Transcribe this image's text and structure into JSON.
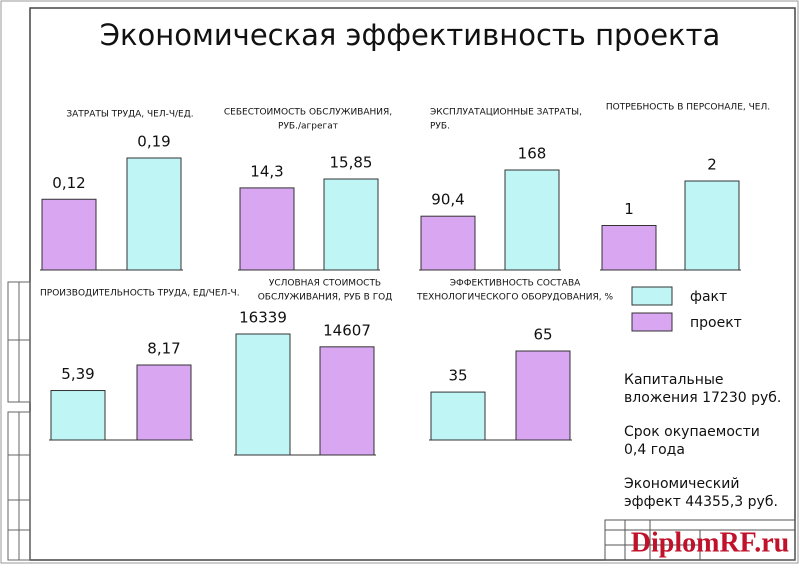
{
  "chart_data": [
    {
      "type": "bar",
      "title": [
        "ЗАТРАТЫ ТРУДА, ЧЕЛ-Ч/ЕД."
      ],
      "values": [
        0.12,
        0.19
      ],
      "value_labels": [
        "0,12",
        "0,19"
      ],
      "colors": [
        "#d9a6f2",
        "#bff5f5"
      ]
    },
    {
      "type": "bar",
      "title": [
        "СЕБЕСТОИМОСТЬ ОБСЛУЖИВАНИЯ,",
        "РУБ./агрегат"
      ],
      "values": [
        14.3,
        15.85
      ],
      "value_labels": [
        "14,3",
        "15,85"
      ],
      "colors": [
        "#d9a6f2",
        "#bff5f5"
      ]
    },
    {
      "type": "bar",
      "title": [
        "ЭКСПЛУАТАЦИОННЫЕ ЗАТРАТЫ,",
        "РУБ."
      ],
      "values": [
        90.4,
        168
      ],
      "value_labels": [
        "90,4",
        "168"
      ],
      "colors": [
        "#d9a6f2",
        "#bff5f5"
      ]
    },
    {
      "type": "bar",
      "title": [
        "ПОТРЕБНОСТЬ В ПЕРСОНАЛЕ, ЧЕЛ."
      ],
      "values": [
        1,
        2
      ],
      "colors": [
        "#d9a6f2",
        "#bff5f5"
      ]
    },
    {
      "type": "bar",
      "title": [
        "ПРОИЗВОДИТЕЛЬНОСТЬ ТРУДА, ЕД/ЧЕЛ-Ч."
      ],
      "values": [
        5.39,
        8.17
      ],
      "value_labels": [
        "5,39",
        "8,17"
      ],
      "colors": [
        "#bff5f5",
        "#d9a6f2"
      ]
    },
    {
      "type": "bar",
      "title": [
        "УСЛОВНАЯ СТОИМОСТЬ",
        "ОБСЛУЖИВАНИЯ, РУБ В ГОД"
      ],
      "values": [
        16339,
        14607
      ],
      "colors": [
        "#bff5f5",
        "#d9a6f2"
      ]
    },
    {
      "type": "bar",
      "title": [
        "ЭФФЕКТИВНОСТЬ СОСТАВА",
        "ТЕХНОЛОГИЧЕСКОГО ОБОРУДОВАНИЯ, %"
      ],
      "values": [
        35,
        65
      ],
      "colors": [
        "#bff5f5",
        "#d9a6f2"
      ]
    }
  ],
  "title": "Экономическая эффективность проекта",
  "legend": [
    {
      "name": "факт",
      "color": "#bff5f5"
    },
    {
      "name": "проект",
      "color": "#d9a6f2"
    }
  ],
  "notes": [
    [
      "Капитальные",
      "вложения 17230 руб."
    ],
    [
      "Срок окупаемости",
      "0,4 года"
    ],
    [
      "Экономический",
      "эффект 44355,3 руб."
    ]
  ],
  "watermark": "DiplomRF.ru"
}
